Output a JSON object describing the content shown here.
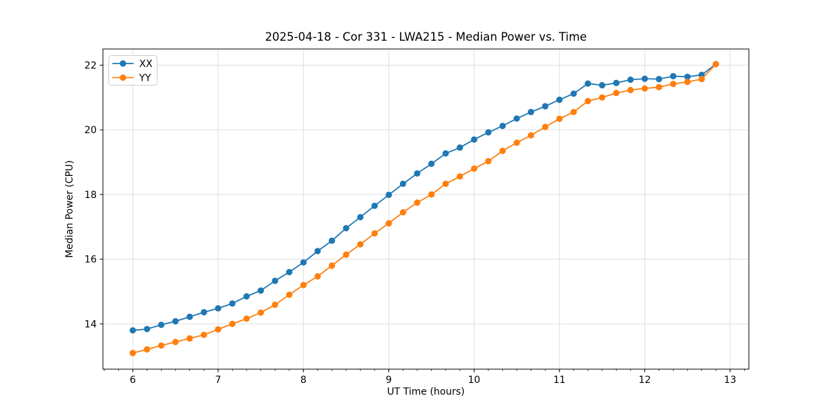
{
  "chart_data": {
    "type": "line",
    "title": "2025-04-18 - Cor 331 - LWA215 - Median Power vs. Time",
    "xlabel": "UT Time (hours)",
    "ylabel": "Median Power (CPU)",
    "x": [
      6.0,
      6.1667,
      6.3333,
      6.5,
      6.6667,
      6.8333,
      7.0,
      7.1667,
      7.3333,
      7.5,
      7.6667,
      7.8333,
      8.0,
      8.1667,
      8.3333,
      8.5,
      8.6667,
      8.8333,
      9.0,
      9.1667,
      9.3333,
      9.5,
      9.6667,
      9.8333,
      10.0,
      10.1667,
      10.3333,
      10.5,
      10.6667,
      10.8333,
      11.0,
      11.1667,
      11.3333,
      11.5,
      11.6667,
      11.8333,
      12.0,
      12.1667,
      12.3333,
      12.5,
      12.6667,
      12.8333
    ],
    "series": [
      {
        "name": "XX",
        "color": "#1f77b4",
        "values": [
          13.8,
          13.84,
          13.97,
          14.08,
          14.22,
          14.36,
          14.48,
          14.63,
          14.85,
          15.03,
          15.33,
          15.6,
          15.9,
          16.25,
          16.57,
          16.96,
          17.3,
          17.65,
          17.99,
          18.33,
          18.65,
          18.95,
          19.27,
          19.45,
          19.7,
          19.92,
          20.12,
          20.35,
          20.55,
          20.73,
          20.93,
          21.12,
          21.43,
          21.38,
          21.45,
          21.55,
          21.58,
          21.57,
          21.66,
          21.64,
          21.7,
          22.03
        ]
      },
      {
        "name": "YY",
        "color": "#ff7f0e",
        "values": [
          13.1,
          13.21,
          13.33,
          13.44,
          13.55,
          13.66,
          13.83,
          14.0,
          14.16,
          14.35,
          14.59,
          14.9,
          15.2,
          15.47,
          15.8,
          16.14,
          16.46,
          16.8,
          17.11,
          17.45,
          17.75,
          18.0,
          18.33,
          18.56,
          18.8,
          19.03,
          19.35,
          19.6,
          19.83,
          20.09,
          20.34,
          20.55,
          20.89,
          21.0,
          21.14,
          21.23,
          21.28,
          21.32,
          21.42,
          21.48,
          21.57,
          22.03
        ]
      }
    ],
    "xlim": [
      5.65,
      13.22
    ],
    "ylim": [
      12.6,
      22.5
    ],
    "xticks": [
      6,
      7,
      8,
      9,
      10,
      11,
      12,
      13
    ],
    "yticks": [
      14,
      16,
      18,
      20,
      22
    ],
    "x_minor_step": 0.166667,
    "grid": true,
    "grid_color": "#dedede",
    "spine_color": "#000000",
    "tick_label_color": "#000000",
    "legend_position": "upper-left",
    "legend_labels": [
      "XX",
      "YY"
    ]
  }
}
